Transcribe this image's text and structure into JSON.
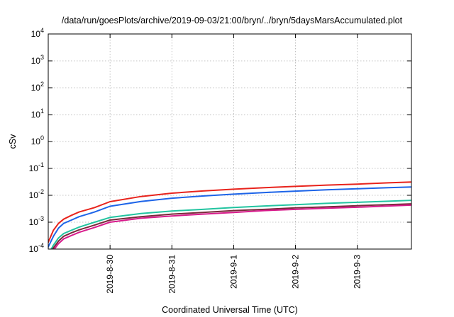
{
  "chart_data": {
    "type": "line",
    "title": "/data/run/goesPlots/archive/2019-09-03/21:00/bryn/../bryn/5daysMarsAccumulated.plot",
    "xlabel": "Coordinated Universal Time (UTC)",
    "ylabel": "cSv",
    "yscale": "log",
    "ylim": [
      0.0001,
      10000
    ],
    "xlim": [
      "2019-08-29T00:00",
      "2019-09-03T21:00"
    ],
    "grid": true,
    "legend": "none",
    "x_ticks": [
      {
        "date": "2019-08-30T00:00",
        "label": "2019-8-30"
      },
      {
        "date": "2019-08-31T00:00",
        "label": "2019-8-31"
      },
      {
        "date": "2019-09-01T00:00",
        "label": "2019-9-1"
      },
      {
        "date": "2019-09-02T00:00",
        "label": "2019-9-2"
      },
      {
        "date": "2019-09-03T00:00",
        "label": "2019-9-3"
      }
    ],
    "y_ticks": [
      {
        "value": 0.0001,
        "base": "10",
        "exp": "-4"
      },
      {
        "value": 0.001,
        "base": "10",
        "exp": "-3"
      },
      {
        "value": 0.01,
        "base": "10",
        "exp": "-2"
      },
      {
        "value": 0.1,
        "base": "10",
        "exp": "-1"
      },
      {
        "value": 1,
        "base": "10",
        "exp": "0"
      },
      {
        "value": 10,
        "base": "10",
        "exp": "1"
      },
      {
        "value": 100,
        "base": "10",
        "exp": "2"
      },
      {
        "value": 1000,
        "base": "10",
        "exp": "3"
      },
      {
        "value": 10000,
        "base": "10",
        "exp": "4"
      }
    ],
    "series": [
      {
        "color": "#e8231c",
        "x": [
          "2019-08-29T00:00",
          "2019-08-29T02:00",
          "2019-08-29T04:00",
          "2019-08-29T06:00",
          "2019-08-29T09:00",
          "2019-08-29T12:00",
          "2019-08-29T18:00",
          "2019-08-30T00:00",
          "2019-08-30T12:00",
          "2019-08-31T00:00",
          "2019-08-31T12:00",
          "2019-09-01T00:00",
          "2019-09-01T12:00",
          "2019-09-02T00:00",
          "2019-09-02T12:00",
          "2019-09-03T00:00",
          "2019-09-03T12:00",
          "2019-09-03T21:00"
        ],
        "y": [
          0.00018,
          0.0005,
          0.0009,
          0.0013,
          0.0018,
          0.0024,
          0.0035,
          0.0058,
          0.009,
          0.012,
          0.0145,
          0.0168,
          0.0192,
          0.0215,
          0.024,
          0.026,
          0.029,
          0.031
        ]
      },
      {
        "color": "#1d64e8",
        "x": [
          "2019-08-29T00:00",
          "2019-08-29T02:00",
          "2019-08-29T04:00",
          "2019-08-29T06:00",
          "2019-08-29T09:00",
          "2019-08-29T12:00",
          "2019-08-29T18:00",
          "2019-08-30T00:00",
          "2019-08-30T12:00",
          "2019-08-31T00:00",
          "2019-08-31T12:00",
          "2019-09-01T00:00",
          "2019-09-01T12:00",
          "2019-09-02T00:00",
          "2019-09-02T12:00",
          "2019-09-03T00:00",
          "2019-09-03T12:00",
          "2019-09-03T21:00"
        ],
        "y": [
          0.00012,
          0.0003,
          0.0006,
          0.0009,
          0.0012,
          0.0016,
          0.0024,
          0.0039,
          0.0059,
          0.0078,
          0.0094,
          0.011,
          0.0127,
          0.0143,
          0.016,
          0.0175,
          0.0192,
          0.0205
        ]
      },
      {
        "color": "#22c4a0",
        "x": [
          "2019-08-29T00:00",
          "2019-08-29T02:00",
          "2019-08-29T04:00",
          "2019-08-29T06:00",
          "2019-08-29T09:00",
          "2019-08-29T12:00",
          "2019-08-29T18:00",
          "2019-08-30T00:00",
          "2019-08-30T12:00",
          "2019-08-31T00:00",
          "2019-08-31T12:00",
          "2019-09-01T00:00",
          "2019-09-01T12:00",
          "2019-09-02T00:00",
          "2019-09-02T12:00",
          "2019-09-03T00:00",
          "2019-09-03T12:00",
          "2019-09-03T21:00"
        ],
        "y": [
          6e-05,
          0.00014,
          0.00026,
          0.00038,
          0.0005,
          0.00066,
          0.001,
          0.0015,
          0.0021,
          0.0026,
          0.003,
          0.0035,
          0.004,
          0.0045,
          0.005,
          0.0055,
          0.006,
          0.0065
        ]
      },
      {
        "color": "#7a2a3a",
        "x": [
          "2019-08-29T00:00",
          "2019-08-29T02:00",
          "2019-08-29T04:00",
          "2019-08-29T06:00",
          "2019-08-29T09:00",
          "2019-08-29T12:00",
          "2019-08-29T18:00",
          "2019-08-30T00:00",
          "2019-08-30T12:00",
          "2019-08-31T00:00",
          "2019-08-31T12:00",
          "2019-09-01T00:00",
          "2019-09-01T12:00",
          "2019-09-02T00:00",
          "2019-09-02T12:00",
          "2019-09-03T00:00",
          "2019-09-03T12:00",
          "2019-09-03T21:00"
        ],
        "y": [
          5e-05,
          0.00011,
          0.0002,
          0.0003,
          0.0004,
          0.00052,
          0.00078,
          0.0012,
          0.0016,
          0.002,
          0.0023,
          0.0027,
          0.003,
          0.0034,
          0.0037,
          0.0041,
          0.0045,
          0.0048
        ]
      },
      {
        "color": "#d81b8c",
        "x": [
          "2019-08-29T00:00",
          "2019-08-29T02:00",
          "2019-08-29T04:00",
          "2019-08-29T06:00",
          "2019-08-29T09:00",
          "2019-08-29T12:00",
          "2019-08-29T18:00",
          "2019-08-30T00:00",
          "2019-08-30T12:00",
          "2019-08-31T00:00",
          "2019-08-31T12:00",
          "2019-09-01T00:00",
          "2019-09-01T12:00",
          "2019-09-02T00:00",
          "2019-09-02T12:00",
          "2019-09-03T00:00",
          "2019-09-03T12:00",
          "2019-09-03T21:00"
        ],
        "y": [
          4e-05,
          9e-05,
          0.00016,
          0.00024,
          0.00032,
          0.00042,
          0.00064,
          0.001,
          0.0014,
          0.0017,
          0.002,
          0.0023,
          0.0027,
          0.003,
          0.0033,
          0.0036,
          0.004,
          0.0043
        ]
      }
    ]
  }
}
